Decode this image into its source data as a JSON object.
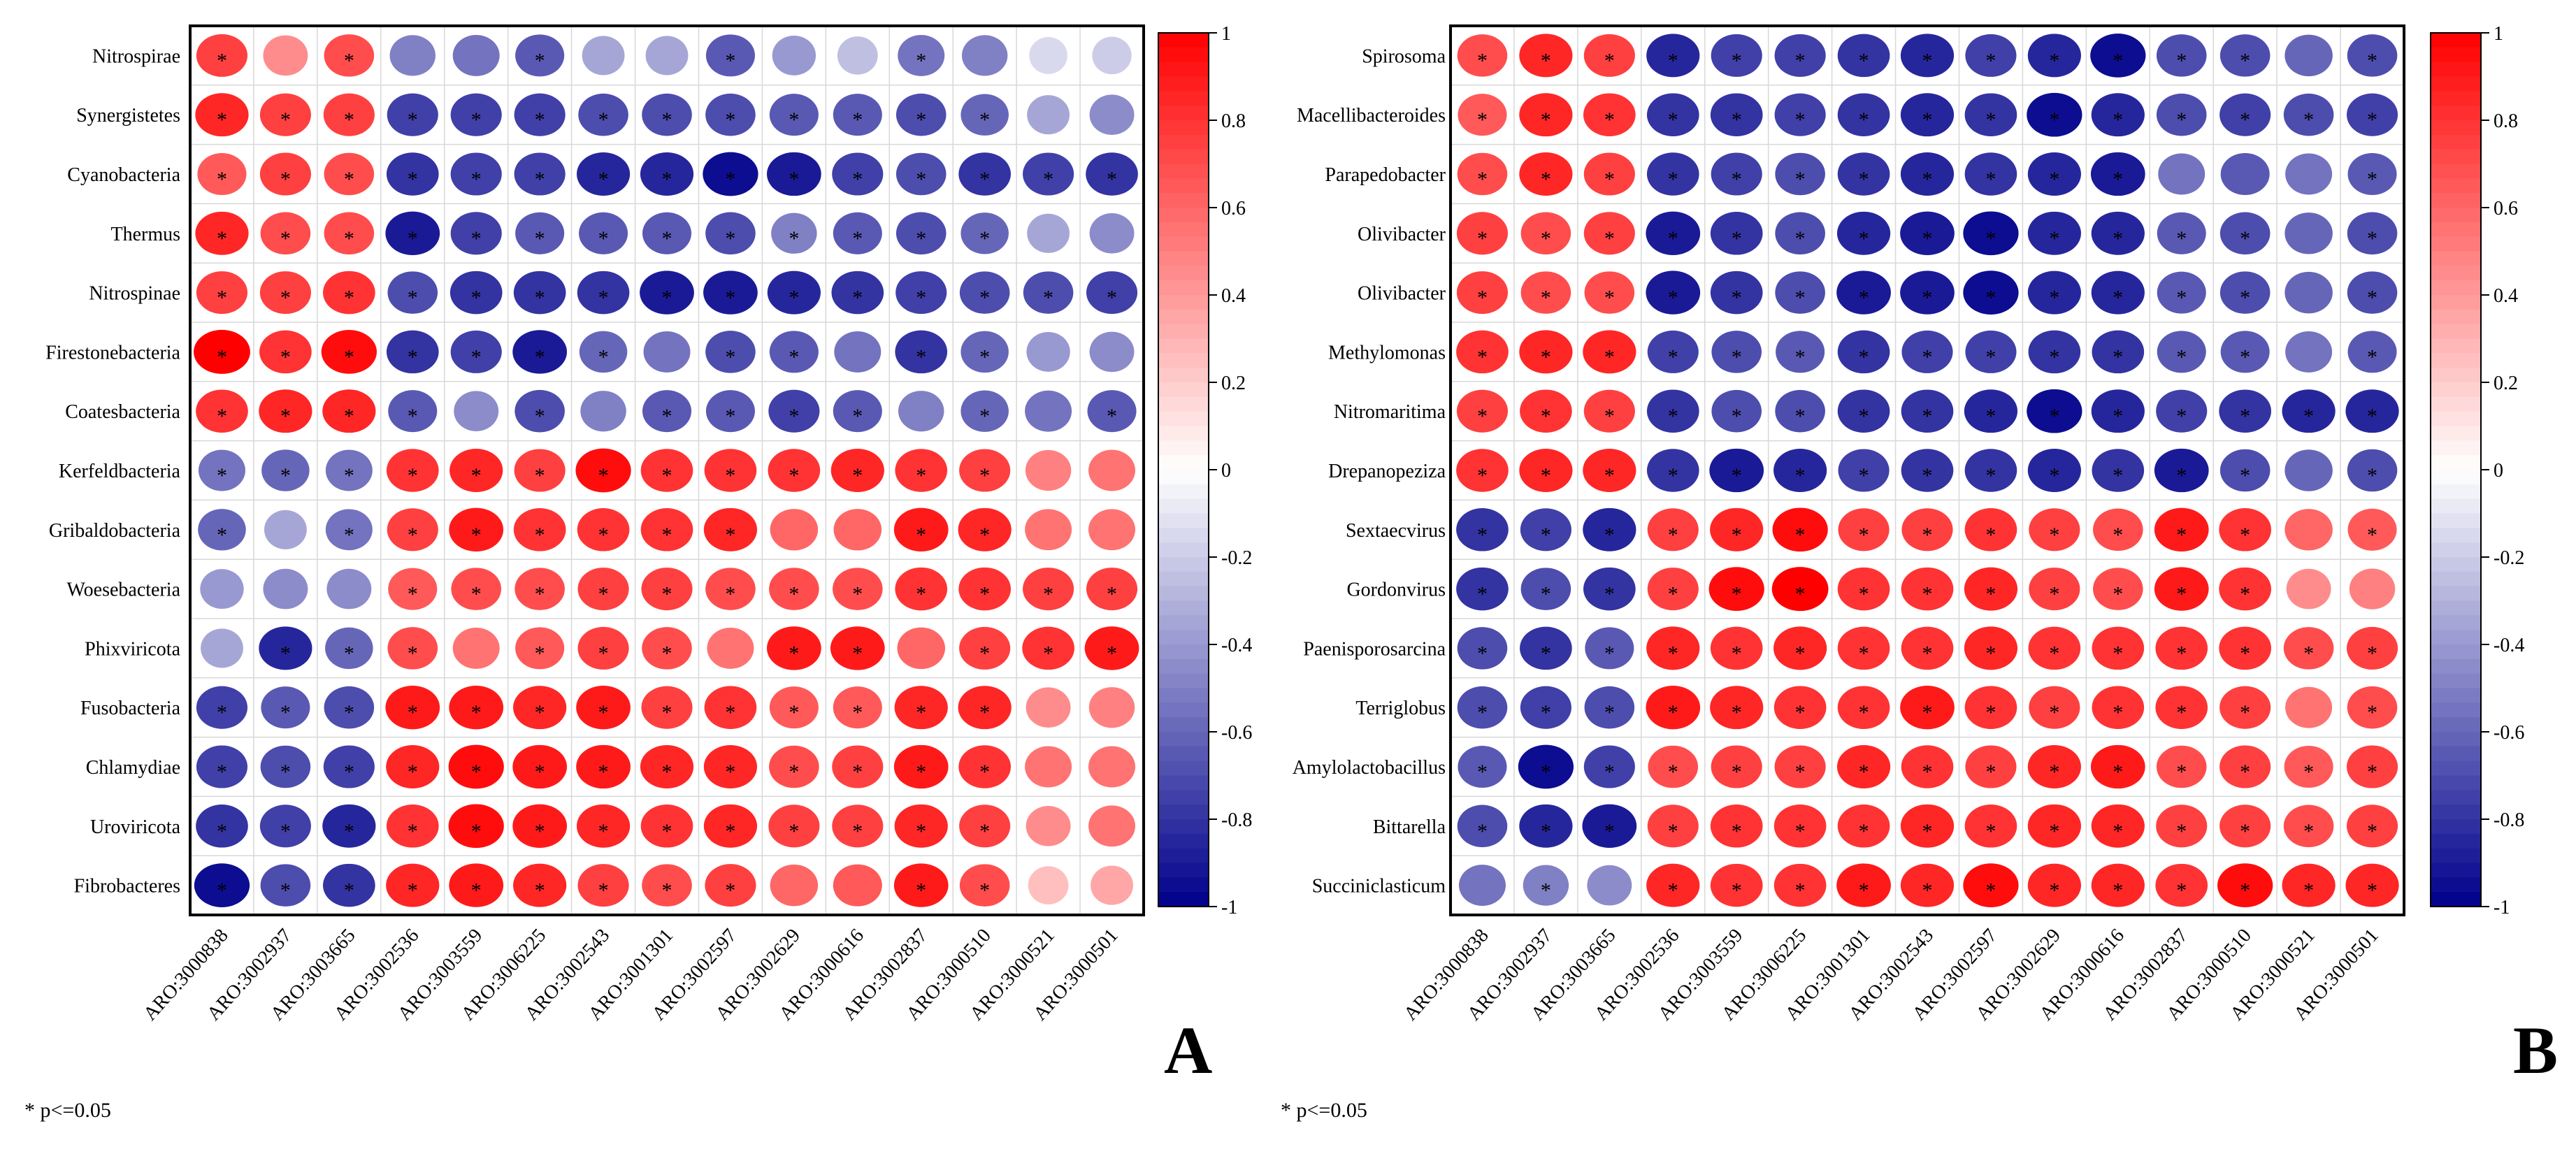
{
  "colors": {
    "positive": "#ff0000",
    "zero": "#ffffff",
    "negative": "#00008b"
  },
  "note": "* p<=0.05",
  "colorbar_ticks": [
    "1",
    "0.8",
    "0.6",
    "0.4",
    "0.2",
    "0",
    "-0.2",
    "-0.4",
    "-0.6",
    "-0.8",
    "-1"
  ],
  "chart_data": [
    {
      "type": "heatmap",
      "panel_label": "A",
      "rows": [
        "Nitrospirae",
        "Synergistetes",
        "Cyanobacteria",
        "Thermus",
        "Nitrospinae",
        "Firestonebacteria",
        "Coatesbacteria",
        "Kerfeldbacteria",
        "Gribaldobacteria",
        "Woesebacteria",
        "Phixviricota",
        "Fusobacteria",
        "Chlamydiae",
        "Uroviricota",
        "Fibrobacteres"
      ],
      "columns": [
        "ARO:3000838",
        "ARO:3002937",
        "ARO:3003665",
        "ARO:3002536",
        "ARO:3003559",
        "ARO:3006225",
        "ARO:3002543",
        "ARO:3001301",
        "ARO:3002597",
        "ARO:3002629",
        "ARO:3000616",
        "ARO:3002837",
        "ARO:3000510",
        "ARO:3000521",
        "ARO:3000501"
      ],
      "values": [
        [
          0.75,
          0.45,
          0.7,
          -0.5,
          -0.55,
          -0.65,
          -0.35,
          -0.35,
          -0.65,
          -0.4,
          -0.25,
          -0.55,
          -0.5,
          -0.15,
          -0.2
        ],
        [
          0.85,
          0.75,
          0.75,
          -0.75,
          -0.75,
          -0.75,
          -0.7,
          -0.7,
          -0.7,
          -0.65,
          -0.65,
          -0.7,
          -0.6,
          -0.35,
          -0.45
        ],
        [
          0.65,
          0.75,
          0.7,
          -0.8,
          -0.75,
          -0.75,
          -0.85,
          -0.85,
          -0.95,
          -0.9,
          -0.75,
          -0.7,
          -0.8,
          -0.75,
          -0.8
        ],
        [
          0.85,
          0.7,
          0.7,
          -0.9,
          -0.75,
          -0.65,
          -0.65,
          -0.65,
          -0.7,
          -0.5,
          -0.65,
          -0.7,
          -0.6,
          -0.35,
          -0.45
        ],
        [
          0.75,
          0.75,
          0.8,
          -0.7,
          -0.8,
          -0.8,
          -0.8,
          -0.9,
          -0.9,
          -0.85,
          -0.8,
          -0.75,
          -0.7,
          -0.7,
          -0.75
        ],
        [
          1.0,
          0.8,
          0.95,
          -0.8,
          -0.75,
          -0.9,
          -0.6,
          -0.55,
          -0.7,
          -0.65,
          -0.55,
          -0.8,
          -0.6,
          -0.4,
          -0.45
        ],
        [
          0.8,
          0.85,
          0.85,
          -0.65,
          -0.45,
          -0.7,
          -0.5,
          -0.65,
          -0.65,
          -0.75,
          -0.65,
          -0.5,
          -0.6,
          -0.55,
          -0.65
        ],
        [
          -0.55,
          -0.6,
          -0.55,
          0.8,
          0.85,
          0.75,
          0.95,
          0.8,
          0.8,
          0.8,
          0.85,
          0.8,
          0.75,
          0.5,
          0.55
        ],
        [
          -0.6,
          -0.35,
          -0.55,
          0.75,
          0.9,
          0.8,
          0.8,
          0.8,
          0.85,
          0.6,
          0.6,
          0.9,
          0.85,
          0.55,
          0.55
        ],
        [
          -0.4,
          -0.45,
          -0.45,
          0.65,
          0.7,
          0.7,
          0.75,
          0.75,
          0.7,
          0.7,
          0.7,
          0.8,
          0.8,
          0.75,
          0.75
        ],
        [
          -0.35,
          -0.85,
          -0.6,
          0.7,
          0.55,
          0.65,
          0.75,
          0.7,
          0.55,
          0.9,
          0.9,
          0.6,
          0.75,
          0.8,
          0.9
        ],
        [
          -0.75,
          -0.65,
          -0.7,
          0.9,
          0.9,
          0.85,
          0.9,
          0.75,
          0.8,
          0.65,
          0.65,
          0.85,
          0.85,
          0.45,
          0.5
        ],
        [
          -0.75,
          -0.7,
          -0.75,
          0.85,
          0.95,
          0.9,
          0.9,
          0.85,
          0.85,
          0.7,
          0.75,
          0.9,
          0.8,
          0.55,
          0.55
        ],
        [
          -0.8,
          -0.75,
          -0.85,
          0.8,
          0.95,
          0.9,
          0.85,
          0.8,
          0.85,
          0.75,
          0.75,
          0.85,
          0.75,
          0.45,
          0.55
        ],
        [
          -0.95,
          -0.7,
          -0.8,
          0.85,
          0.9,
          0.85,
          0.75,
          0.7,
          0.75,
          0.6,
          0.65,
          0.9,
          0.7,
          0.25,
          0.35
        ]
      ],
      "significant": [
        [
          1,
          0,
          1,
          0,
          0,
          1,
          0,
          0,
          1,
          0,
          0,
          1,
          0,
          0,
          0
        ],
        [
          1,
          1,
          1,
          1,
          1,
          1,
          1,
          1,
          1,
          1,
          1,
          1,
          1,
          0,
          0
        ],
        [
          1,
          1,
          1,
          1,
          1,
          1,
          1,
          1,
          1,
          1,
          1,
          1,
          1,
          1,
          1
        ],
        [
          1,
          1,
          1,
          1,
          1,
          1,
          1,
          1,
          1,
          1,
          1,
          1,
          1,
          0,
          0
        ],
        [
          1,
          1,
          1,
          1,
          1,
          1,
          1,
          1,
          1,
          1,
          1,
          1,
          1,
          1,
          1
        ],
        [
          1,
          1,
          1,
          1,
          1,
          1,
          1,
          0,
          1,
          1,
          0,
          1,
          1,
          0,
          0
        ],
        [
          1,
          1,
          1,
          1,
          0,
          1,
          0,
          1,
          1,
          1,
          1,
          0,
          1,
          0,
          1
        ],
        [
          1,
          1,
          1,
          1,
          1,
          1,
          1,
          1,
          1,
          1,
          1,
          1,
          1,
          0,
          0
        ],
        [
          1,
          0,
          1,
          1,
          1,
          1,
          1,
          1,
          1,
          0,
          0,
          1,
          1,
          0,
          0
        ],
        [
          0,
          0,
          0,
          1,
          1,
          1,
          1,
          1,
          1,
          1,
          1,
          1,
          1,
          1,
          1
        ],
        [
          0,
          1,
          1,
          1,
          0,
          1,
          1,
          1,
          0,
          1,
          1,
          0,
          1,
          1,
          1
        ],
        [
          1,
          1,
          1,
          1,
          1,
          1,
          1,
          1,
          1,
          1,
          1,
          1,
          1,
          0,
          0
        ],
        [
          1,
          1,
          1,
          1,
          1,
          1,
          1,
          1,
          1,
          1,
          1,
          1,
          1,
          0,
          0
        ],
        [
          1,
          1,
          1,
          1,
          1,
          1,
          1,
          1,
          1,
          1,
          1,
          1,
          1,
          0,
          0
        ],
        [
          1,
          1,
          1,
          1,
          1,
          1,
          1,
          1,
          1,
          0,
          0,
          1,
          1,
          0,
          0
        ]
      ],
      "colorbar": {
        "min": -1,
        "max": 1
      }
    },
    {
      "type": "heatmap",
      "panel_label": "B",
      "rows": [
        "Spirosoma",
        "Macellibacteroides",
        "Parapedobacter",
        "Olivibacter",
        "Olivibacter",
        "Methylomonas",
        "Nitromaritima",
        "Drepanopeziza",
        "Sextaecvirus",
        "Gordonvirus",
        "Paenisporosarcina",
        "Terriglobus",
        "Amylolactobacillus",
        "Bittarella",
        "Succiniclasticum"
      ],
      "columns": [
        "ARO:3000838",
        "ARO:3002937",
        "ARO:3003665",
        "ARO:3002536",
        "ARO:3003559",
        "ARO:3006225",
        "ARO:3001301",
        "ARO:3002543",
        "ARO:3002597",
        "ARO:3002629",
        "ARO:3000616",
        "ARO:3002837",
        "ARO:3000510",
        "ARO:3000521",
        "ARO:3000501"
      ],
      "values": [
        [
          0.7,
          0.85,
          0.75,
          -0.85,
          -0.75,
          -0.75,
          -0.8,
          -0.85,
          -0.75,
          -0.85,
          -0.95,
          -0.7,
          -0.7,
          -0.6,
          -0.7
        ],
        [
          0.65,
          0.85,
          0.8,
          -0.8,
          -0.8,
          -0.75,
          -0.8,
          -0.85,
          -0.8,
          -0.95,
          -0.85,
          -0.7,
          -0.75,
          -0.7,
          -0.75
        ],
        [
          0.7,
          0.85,
          0.75,
          -0.8,
          -0.75,
          -0.7,
          -0.8,
          -0.85,
          -0.8,
          -0.85,
          -0.9,
          -0.55,
          -0.65,
          -0.55,
          -0.65
        ],
        [
          0.75,
          0.7,
          0.75,
          -0.9,
          -0.8,
          -0.7,
          -0.85,
          -0.9,
          -0.95,
          -0.85,
          -0.85,
          -0.65,
          -0.7,
          -0.6,
          -0.7
        ],
        [
          0.75,
          0.7,
          0.7,
          -0.9,
          -0.8,
          -0.7,
          -0.9,
          -0.9,
          -0.95,
          -0.85,
          -0.85,
          -0.65,
          -0.7,
          -0.6,
          -0.7
        ],
        [
          0.8,
          0.85,
          0.85,
          -0.75,
          -0.7,
          -0.65,
          -0.8,
          -0.75,
          -0.75,
          -0.8,
          -0.8,
          -0.65,
          -0.65,
          -0.55,
          -0.65
        ],
        [
          0.75,
          0.8,
          0.75,
          -0.8,
          -0.7,
          -0.7,
          -0.8,
          -0.8,
          -0.85,
          -0.95,
          -0.85,
          -0.75,
          -0.8,
          -0.85,
          -0.85
        ],
        [
          0.8,
          0.85,
          0.85,
          -0.8,
          -0.9,
          -0.85,
          -0.75,
          -0.8,
          -0.8,
          -0.85,
          -0.8,
          -0.9,
          -0.7,
          -0.6,
          -0.7
        ],
        [
          -0.8,
          -0.75,
          -0.85,
          0.75,
          0.85,
          0.95,
          0.75,
          0.75,
          0.8,
          0.75,
          0.7,
          0.9,
          0.8,
          0.6,
          0.65
        ],
        [
          -0.8,
          -0.7,
          -0.8,
          0.75,
          0.95,
          1.0,
          0.8,
          0.8,
          0.85,
          0.75,
          0.7,
          0.9,
          0.8,
          0.45,
          0.5
        ],
        [
          -0.7,
          -0.8,
          -0.65,
          0.85,
          0.8,
          0.85,
          0.8,
          0.8,
          0.85,
          0.8,
          0.8,
          0.8,
          0.8,
          0.7,
          0.75
        ],
        [
          -0.7,
          -0.75,
          -0.7,
          0.9,
          0.85,
          0.8,
          0.8,
          0.9,
          0.8,
          0.75,
          0.8,
          0.8,
          0.75,
          0.55,
          0.7
        ],
        [
          -0.65,
          -0.95,
          -0.75,
          0.7,
          0.75,
          0.75,
          0.85,
          0.8,
          0.75,
          0.85,
          0.9,
          0.7,
          0.75,
          0.65,
          0.75
        ],
        [
          -0.7,
          -0.85,
          -0.9,
          0.75,
          0.8,
          0.8,
          0.8,
          0.85,
          0.8,
          0.85,
          0.85,
          0.75,
          0.75,
          0.7,
          0.75
        ],
        [
          -0.55,
          -0.5,
          -0.45,
          0.85,
          0.8,
          0.8,
          0.9,
          0.85,
          0.95,
          0.85,
          0.85,
          0.8,
          0.95,
          0.85,
          0.85
        ]
      ],
      "significant": [
        [
          1,
          1,
          1,
          1,
          1,
          1,
          1,
          1,
          1,
          1,
          1,
          1,
          1,
          0,
          1
        ],
        [
          1,
          1,
          1,
          1,
          1,
          1,
          1,
          1,
          1,
          1,
          1,
          1,
          1,
          1,
          1
        ],
        [
          1,
          1,
          1,
          1,
          1,
          1,
          1,
          1,
          1,
          1,
          1,
          0,
          0,
          0,
          1
        ],
        [
          1,
          1,
          1,
          1,
          1,
          1,
          1,
          1,
          1,
          1,
          1,
          1,
          1,
          0,
          1
        ],
        [
          1,
          1,
          1,
          1,
          1,
          1,
          1,
          1,
          1,
          1,
          1,
          1,
          1,
          0,
          1
        ],
        [
          1,
          1,
          1,
          1,
          1,
          1,
          1,
          1,
          1,
          1,
          1,
          1,
          1,
          0,
          1
        ],
        [
          1,
          1,
          1,
          1,
          1,
          1,
          1,
          1,
          1,
          1,
          1,
          1,
          1,
          1,
          1
        ],
        [
          1,
          1,
          1,
          1,
          1,
          1,
          1,
          1,
          1,
          1,
          1,
          1,
          1,
          0,
          1
        ],
        [
          1,
          1,
          1,
          1,
          1,
          1,
          1,
          1,
          1,
          1,
          1,
          1,
          1,
          0,
          1
        ],
        [
          1,
          1,
          1,
          1,
          1,
          1,
          1,
          1,
          1,
          1,
          1,
          1,
          1,
          0,
          0
        ],
        [
          1,
          1,
          1,
          1,
          1,
          1,
          1,
          1,
          1,
          1,
          1,
          1,
          1,
          1,
          1
        ],
        [
          1,
          1,
          1,
          1,
          1,
          1,
          1,
          1,
          1,
          1,
          1,
          1,
          1,
          0,
          1
        ],
        [
          1,
          1,
          1,
          1,
          1,
          1,
          1,
          1,
          1,
          1,
          1,
          1,
          1,
          1,
          1
        ],
        [
          1,
          1,
          1,
          1,
          1,
          1,
          1,
          1,
          1,
          1,
          1,
          1,
          1,
          1,
          1
        ],
        [
          0,
          1,
          0,
          1,
          1,
          1,
          1,
          1,
          1,
          1,
          1,
          1,
          1,
          1,
          1
        ]
      ],
      "colorbar": {
        "min": -1,
        "max": 1
      }
    }
  ]
}
